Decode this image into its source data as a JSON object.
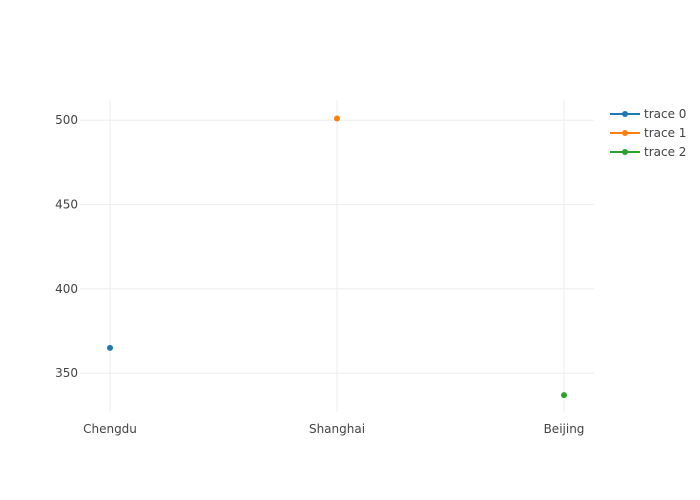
{
  "chart_data": {
    "type": "scatter",
    "categories": [
      "Chengdu",
      "Shanghai",
      "Beijing"
    ],
    "series": [
      {
        "name": "trace 0",
        "x": [
          "Chengdu"
        ],
        "values": [
          365
        ],
        "color": "#1f77b4"
      },
      {
        "name": "trace 1",
        "x": [
          "Shanghai"
        ],
        "values": [
          501
        ],
        "color": "#ff7f0e"
      },
      {
        "name": "trace 2",
        "x": [
          "Beijing"
        ],
        "values": [
          337
        ],
        "color": "#2ca02c"
      }
    ],
    "yticks": [
      350,
      400,
      450,
      500
    ],
    "ylim": [
      327,
      512
    ],
    "grid": true,
    "legend_position": "top-right"
  }
}
